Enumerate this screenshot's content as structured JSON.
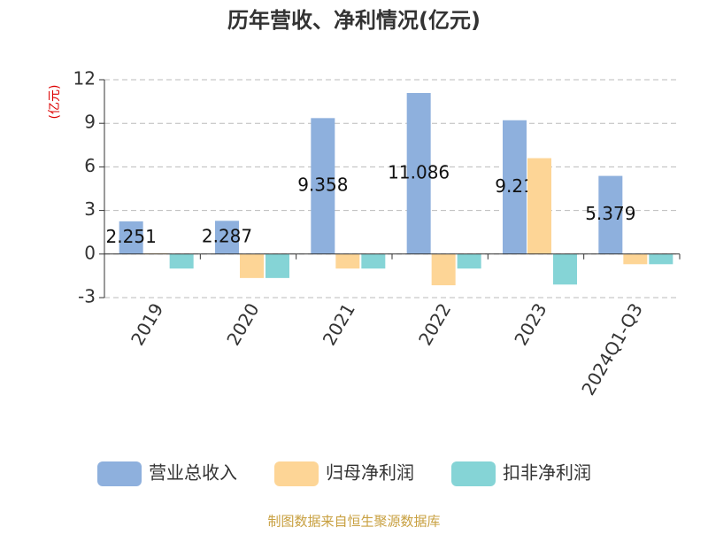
{
  "chart_data": {
    "type": "bar",
    "title": "历年营收、净利情况(亿元)",
    "y_label": "(亿元)",
    "categories": [
      "2019",
      "2020",
      "2021",
      "2022",
      "2023",
      "2024Q1-Q3"
    ],
    "series": [
      {
        "name": "营业总收入",
        "color": "#8eb0dd",
        "values": [
          2.251,
          2.287,
          9.358,
          11.086,
          9.21,
          5.379
        ]
      },
      {
        "name": "归母净利润",
        "color": "#fdd596",
        "values": [
          0.05,
          -1.65,
          -1.0,
          -2.15,
          6.6,
          -0.7
        ]
      },
      {
        "name": "扣非净利润",
        "color": "#85d4d6",
        "values": [
          -1.0,
          -1.65,
          -1.0,
          -1.0,
          -2.1,
          -0.7
        ]
      }
    ],
    "ylim": [
      -3,
      12
    ],
    "yticks": [
      -3,
      0,
      3,
      6,
      9,
      12
    ],
    "grid": true,
    "source": "制图数据来自恒生聚源数据库"
  }
}
